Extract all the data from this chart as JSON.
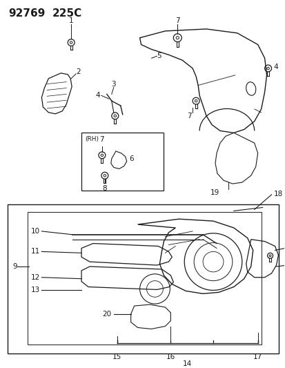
{
  "title_part1": "92769",
  "title_part2": "225C",
  "bg_color": "#ffffff",
  "line_color": "#1a1a1a",
  "gray_color": "#888888",
  "fig_width": 4.14,
  "fig_height": 5.33,
  "dpi": 100
}
